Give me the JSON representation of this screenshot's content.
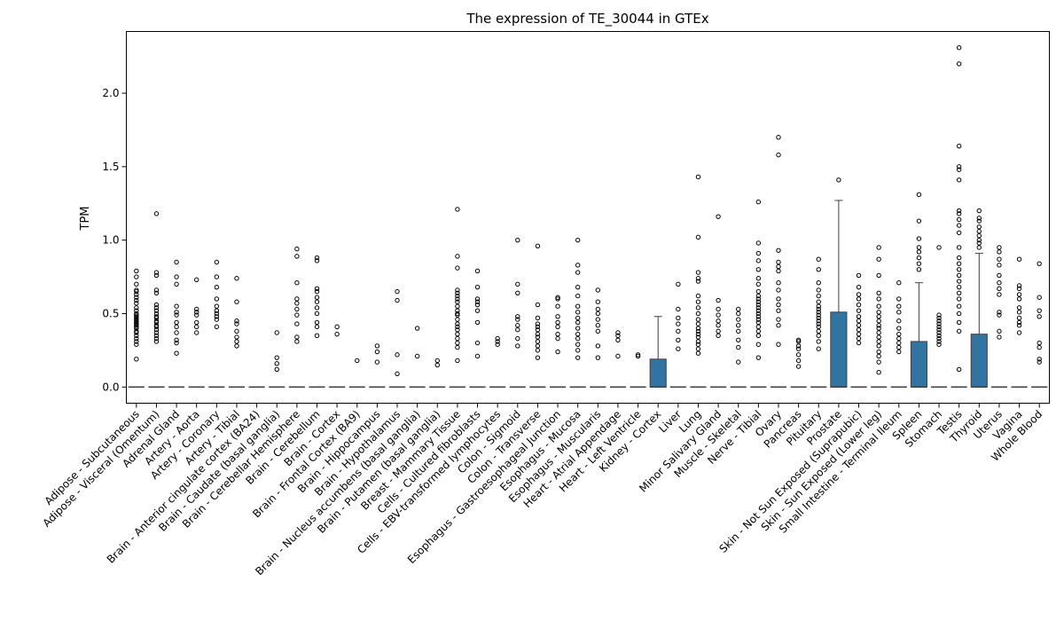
{
  "chart_data": {
    "type": "box",
    "title": "The expression of TE_30044 in GTEx",
    "xlabel": "",
    "ylabel": "TPM",
    "ylim": [
      -0.11,
      2.42
    ],
    "yticks": [
      "0.0",
      "0.5",
      "1.0",
      "1.5",
      "2.0"
    ],
    "box_color": "#3274a1",
    "categories": [
      "Adipose - Subcutaneous",
      "Adipose - Visceral (Omentum)",
      "Adrenal Gland",
      "Artery - Aorta",
      "Artery - Coronary",
      "Artery - Tibial",
      "Brain - Anterior cingulate cortex (BA24)",
      "Brain - Caudate (basal ganglia)",
      "Brain - Cerebellar Hemisphere",
      "Brain - Cerebellum",
      "Brain - Cortex",
      "Brain - Frontal Cortex (BA9)",
      "Brain - Hippocampus",
      "Brain - Hypothalamus",
      "Brain - Nucleus accumbens (basal ganglia)",
      "Brain - Putamen (basal ganglia)",
      "Breast - Mammary Tissue",
      "Cells - Cultured fibroblasts",
      "Cells - EBV-transformed lymphocytes",
      "Colon - Sigmoid",
      "Colon - Transverse",
      "Esophagus - Gastroesophageal Junction",
      "Esophagus - Mucosa",
      "Esophagus - Muscularis",
      "Heart - Atrial Appendage",
      "Heart - Left Ventricle",
      "Kidney - Cortex",
      "Liver",
      "Lung",
      "Minor Salivary Gland",
      "Muscle - Skeletal",
      "Nerve - Tibial",
      "Ovary",
      "Pancreas",
      "Pituitary",
      "Prostate",
      "Skin - Not Sun Exposed (Suprapubic)",
      "Skin - Sun Exposed (Lower leg)",
      "Small Intestine - Terminal Ileum",
      "Spleen",
      "Stomach",
      "Testis",
      "Thyroid",
      "Uterus",
      "Vagina",
      "Whole Blood"
    ],
    "boxes": [
      {
        "q1": 0,
        "median": 0,
        "q3": 0,
        "whisker_low": 0,
        "whisker_high": 0,
        "outliers": [
          0.19,
          0.29,
          0.31,
          0.33,
          0.35,
          0.37,
          0.38,
          0.4,
          0.41,
          0.42,
          0.43,
          0.44,
          0.45,
          0.46,
          0.47,
          0.48,
          0.49,
          0.5,
          0.52,
          0.54,
          0.57,
          0.59,
          0.61,
          0.63,
          0.65,
          0.66,
          0.7,
          0.75,
          0.79
        ]
      },
      {
        "q1": 0,
        "median": 0,
        "q3": 0,
        "whisker_low": 0,
        "whisker_high": 0,
        "outliers": [
          0.31,
          0.33,
          0.35,
          0.37,
          0.39,
          0.41,
          0.42,
          0.44,
          0.45,
          0.47,
          0.48,
          0.5,
          0.52,
          0.54,
          0.56,
          0.64,
          0.66,
          0.76,
          0.78,
          1.18
        ]
      },
      {
        "q1": 0,
        "median": 0,
        "q3": 0,
        "whisker_low": 0,
        "whisker_high": 0,
        "outliers": [
          0.23,
          0.3,
          0.32,
          0.37,
          0.41,
          0.44,
          0.49,
          0.51,
          0.55,
          0.7,
          0.75,
          0.85
        ]
      },
      {
        "q1": 0,
        "median": 0,
        "q3": 0,
        "whisker_low": 0,
        "whisker_high": 0,
        "outliers": [
          0.37,
          0.41,
          0.44,
          0.49,
          0.51,
          0.53,
          0.73
        ]
      },
      {
        "q1": 0,
        "median": 0,
        "q3": 0,
        "whisker_low": 0,
        "whisker_high": 0,
        "outliers": [
          0.41,
          0.46,
          0.48,
          0.5,
          0.52,
          0.55,
          0.6,
          0.68,
          0.75,
          0.85
        ]
      },
      {
        "q1": 0,
        "median": 0,
        "q3": 0,
        "whisker_low": 0,
        "whisker_high": 0,
        "outliers": [
          0.28,
          0.31,
          0.34,
          0.38,
          0.43,
          0.45,
          0.58,
          0.74
        ]
      },
      {
        "q1": 0,
        "median": 0,
        "q3": 0,
        "whisker_low": 0,
        "whisker_high": 0,
        "outliers": []
      },
      {
        "q1": 0,
        "median": 0,
        "q3": 0,
        "whisker_low": 0,
        "whisker_high": 0,
        "outliers": [
          0.12,
          0.16,
          0.2,
          0.37
        ]
      },
      {
        "q1": 0,
        "median": 0,
        "q3": 0,
        "whisker_low": 0,
        "whisker_high": 0,
        "outliers": [
          0.31,
          0.34,
          0.43,
          0.49,
          0.53,
          0.57,
          0.6,
          0.71,
          0.89,
          0.94
        ]
      },
      {
        "q1": 0,
        "median": 0,
        "q3": 0,
        "whisker_low": 0,
        "whisker_high": 0,
        "outliers": [
          0.35,
          0.41,
          0.44,
          0.5,
          0.54,
          0.58,
          0.61,
          0.65,
          0.67,
          0.86,
          0.88
        ]
      },
      {
        "q1": 0,
        "median": 0,
        "q3": 0,
        "whisker_low": 0,
        "whisker_high": 0,
        "outliers": [
          0.36,
          0.41
        ]
      },
      {
        "q1": 0,
        "median": 0,
        "q3": 0,
        "whisker_low": 0,
        "whisker_high": 0,
        "outliers": [
          0.18
        ]
      },
      {
        "q1": 0,
        "median": 0,
        "q3": 0,
        "whisker_low": 0,
        "whisker_high": 0,
        "outliers": [
          0.17,
          0.24,
          0.28
        ]
      },
      {
        "q1": 0,
        "median": 0,
        "q3": 0,
        "whisker_low": 0,
        "whisker_high": 0,
        "outliers": [
          0.09,
          0.22,
          0.59,
          0.65
        ]
      },
      {
        "q1": 0,
        "median": 0,
        "q3": 0,
        "whisker_low": 0,
        "whisker_high": 0,
        "outliers": [
          0.21,
          0.4
        ]
      },
      {
        "q1": 0,
        "median": 0,
        "q3": 0,
        "whisker_low": 0,
        "whisker_high": 0,
        "outliers": [
          0.15,
          0.18
        ]
      },
      {
        "q1": 0,
        "median": 0,
        "q3": 0,
        "whisker_low": 0,
        "whisker_high": 0,
        "outliers": [
          0.18,
          0.27,
          0.3,
          0.33,
          0.36,
          0.39,
          0.41,
          0.43,
          0.46,
          0.49,
          0.5,
          0.52,
          0.55,
          0.58,
          0.6,
          0.62,
          0.64,
          0.66,
          0.81,
          0.89,
          1.21
        ]
      },
      {
        "q1": 0,
        "median": 0,
        "q3": 0,
        "whisker_low": 0,
        "whisker_high": 0,
        "outliers": [
          0.21,
          0.3,
          0.44,
          0.52,
          0.56,
          0.58,
          0.6,
          0.68,
          0.79
        ]
      },
      {
        "q1": 0,
        "median": 0,
        "q3": 0,
        "whisker_low": 0,
        "whisker_high": 0,
        "outliers": [
          0.29,
          0.31,
          0.33
        ]
      },
      {
        "q1": 0,
        "median": 0,
        "q3": 0,
        "whisker_low": 0,
        "whisker_high": 0,
        "outliers": [
          0.28,
          0.33,
          0.39,
          0.42,
          0.46,
          0.48,
          0.64,
          0.7,
          1.0
        ]
      },
      {
        "q1": 0,
        "median": 0,
        "q3": 0,
        "whisker_low": 0,
        "whisker_high": 0,
        "outliers": [
          0.2,
          0.25,
          0.28,
          0.31,
          0.34,
          0.36,
          0.39,
          0.41,
          0.43,
          0.47,
          0.56,
          0.96
        ]
      },
      {
        "q1": 0,
        "median": 0,
        "q3": 0,
        "whisker_low": 0,
        "whisker_high": 0,
        "outliers": [
          0.24,
          0.33,
          0.36,
          0.41,
          0.44,
          0.48,
          0.55,
          0.6,
          0.61
        ]
      },
      {
        "q1": 0,
        "median": 0,
        "q3": 0,
        "whisker_low": 0,
        "whisker_high": 0,
        "outliers": [
          0.2,
          0.25,
          0.29,
          0.33,
          0.36,
          0.4,
          0.44,
          0.47,
          0.51,
          0.55,
          0.62,
          0.68,
          0.78,
          0.83,
          1.0
        ]
      },
      {
        "q1": 0,
        "median": 0,
        "q3": 0,
        "whisker_low": 0,
        "whisker_high": 0,
        "outliers": [
          0.2,
          0.28,
          0.38,
          0.42,
          0.46,
          0.5,
          0.53,
          0.58,
          0.66
        ]
      },
      {
        "q1": 0,
        "median": 0,
        "q3": 0,
        "whisker_low": 0,
        "whisker_high": 0,
        "outliers": [
          0.21,
          0.32,
          0.35,
          0.37
        ]
      },
      {
        "q1": 0,
        "median": 0,
        "q3": 0,
        "whisker_low": 0,
        "whisker_high": 0,
        "outliers": [
          0.21,
          0.22
        ]
      },
      {
        "q1": 0,
        "median": 0,
        "q3": 0.19,
        "whisker_low": 0,
        "whisker_high": 0.48,
        "outliers": []
      },
      {
        "q1": 0,
        "median": 0,
        "q3": 0,
        "whisker_low": 0,
        "whisker_high": 0,
        "outliers": [
          0.26,
          0.32,
          0.38,
          0.43,
          0.47,
          0.53,
          0.7
        ]
      },
      {
        "q1": 0,
        "median": 0,
        "q3": 0,
        "whisker_low": 0,
        "whisker_high": 0,
        "outliers": [
          0.23,
          0.26,
          0.29,
          0.31,
          0.34,
          0.36,
          0.38,
          0.4,
          0.43,
          0.46,
          0.5,
          0.54,
          0.58,
          0.62,
          0.72,
          0.74,
          0.78,
          1.02,
          1.43
        ]
      },
      {
        "q1": 0,
        "median": 0,
        "q3": 0,
        "whisker_low": 0,
        "whisker_high": 0,
        "outliers": [
          0.35,
          0.38,
          0.42,
          0.45,
          0.49,
          0.53,
          0.59,
          1.16
        ]
      },
      {
        "q1": 0,
        "median": 0,
        "q3": 0,
        "whisker_low": 0,
        "whisker_high": 0,
        "outliers": [
          0.17,
          0.27,
          0.32,
          0.38,
          0.42,
          0.46,
          0.5,
          0.53
        ]
      },
      {
        "q1": 0,
        "median": 0,
        "q3": 0,
        "whisker_low": 0,
        "whisker_high": 0,
        "outliers": [
          0.2,
          0.29,
          0.35,
          0.38,
          0.41,
          0.44,
          0.46,
          0.48,
          0.5,
          0.52,
          0.54,
          0.56,
          0.58,
          0.6,
          0.62,
          0.65,
          0.7,
          0.74,
          0.8,
          0.86,
          0.91,
          0.98,
          1.26
        ]
      },
      {
        "q1": 0,
        "median": 0,
        "q3": 0,
        "whisker_low": 0,
        "whisker_high": 0,
        "outliers": [
          0.29,
          0.42,
          0.46,
          0.52,
          0.56,
          0.6,
          0.66,
          0.71,
          0.79,
          0.82,
          0.85,
          0.93,
          1.58,
          1.7
        ]
      },
      {
        "q1": 0,
        "median": 0,
        "q3": 0,
        "whisker_low": 0,
        "whisker_high": 0,
        "outliers": [
          0.14,
          0.18,
          0.22,
          0.26,
          0.28,
          0.31,
          0.32
        ]
      },
      {
        "q1": 0,
        "median": 0,
        "q3": 0,
        "whisker_low": 0,
        "whisker_high": 0,
        "outliers": [
          0.26,
          0.31,
          0.35,
          0.38,
          0.41,
          0.43,
          0.45,
          0.47,
          0.49,
          0.51,
          0.53,
          0.55,
          0.58,
          0.62,
          0.66,
          0.71,
          0.8,
          0.87
        ]
      },
      {
        "q1": 0,
        "median": 0,
        "q3": 0.51,
        "whisker_low": 0,
        "whisker_high": 1.27,
        "outliers": [
          1.41
        ]
      },
      {
        "q1": 0,
        "median": 0,
        "q3": 0,
        "whisker_low": 0,
        "whisker_high": 0,
        "outliers": [
          0.3,
          0.33,
          0.36,
          0.39,
          0.42,
          0.45,
          0.48,
          0.52,
          0.56,
          0.6,
          0.63,
          0.68,
          0.76
        ]
      },
      {
        "q1": 0,
        "median": 0,
        "q3": 0,
        "whisker_low": 0,
        "whisker_high": 0,
        "outliers": [
          0.1,
          0.17,
          0.21,
          0.24,
          0.28,
          0.31,
          0.34,
          0.37,
          0.4,
          0.42,
          0.45,
          0.48,
          0.51,
          0.55,
          0.6,
          0.64,
          0.76,
          0.87,
          0.95
        ]
      },
      {
        "q1": 0,
        "median": 0,
        "q3": 0,
        "whisker_low": 0,
        "whisker_high": 0,
        "outliers": [
          0.24,
          0.27,
          0.3,
          0.33,
          0.36,
          0.4,
          0.45,
          0.51,
          0.55,
          0.6,
          0.71
        ]
      },
      {
        "q1": 0,
        "median": 0,
        "q3": 0.31,
        "whisker_low": 0,
        "whisker_high": 0.71,
        "outliers": [
          0.8,
          0.84,
          0.88,
          0.92,
          0.95,
          1.01,
          1.13,
          1.31
        ]
      },
      {
        "q1": 0,
        "median": 0,
        "q3": 0,
        "whisker_low": 0,
        "whisker_high": 0,
        "outliers": [
          0.29,
          0.31,
          0.33,
          0.35,
          0.37,
          0.39,
          0.41,
          0.43,
          0.45,
          0.47,
          0.49,
          0.95
        ]
      },
      {
        "q1": 0,
        "median": 0,
        "q3": 0,
        "whisker_low": 0,
        "whisker_high": 0,
        "outliers": [
          0.12,
          0.38,
          0.44,
          0.5,
          0.55,
          0.6,
          0.64,
          0.68,
          0.72,
          0.76,
          0.8,
          0.84,
          0.88,
          0.95,
          1.05,
          1.1,
          1.14,
          1.18,
          1.2,
          1.41,
          1.48,
          1.5,
          1.64,
          2.2,
          2.31
        ]
      },
      {
        "q1": 0,
        "median": 0,
        "q3": 0.36,
        "whisker_low": 0,
        "whisker_high": 0.91,
        "outliers": [
          0.95,
          0.98,
          1.0,
          1.03,
          1.06,
          1.09,
          1.13,
          1.15,
          1.2
        ]
      },
      {
        "q1": 0,
        "median": 0,
        "q3": 0,
        "whisker_low": 0,
        "whisker_high": 0,
        "outliers": [
          0.34,
          0.38,
          0.49,
          0.51,
          0.63,
          0.67,
          0.71,
          0.76,
          0.83,
          0.87,
          0.92,
          0.95
        ]
      },
      {
        "q1": 0,
        "median": 0,
        "q3": 0,
        "whisker_low": 0,
        "whisker_high": 0,
        "outliers": [
          0.37,
          0.42,
          0.44,
          0.47,
          0.51,
          0.54,
          0.6,
          0.63,
          0.67,
          0.69,
          0.87
        ]
      },
      {
        "q1": 0,
        "median": 0,
        "q3": 0,
        "whisker_low": 0,
        "whisker_high": 0,
        "outliers": [
          0.17,
          0.19,
          0.27,
          0.3,
          0.48,
          0.52,
          0.61,
          0.84
        ]
      }
    ]
  }
}
